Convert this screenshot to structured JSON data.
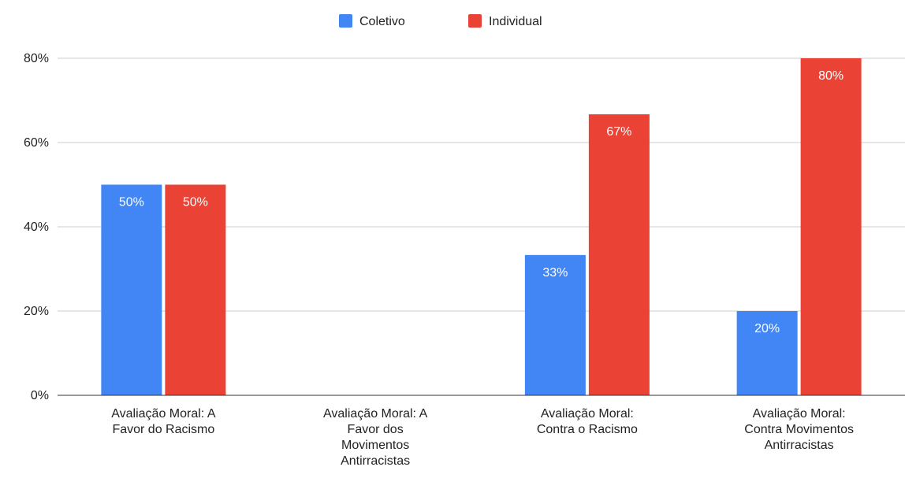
{
  "chart_data": {
    "type": "bar",
    "title": "",
    "xlabel": "",
    "ylabel": "",
    "ylim": [
      0,
      80
    ],
    "y_ticks": [
      "0%",
      "20%",
      "40%",
      "60%",
      "80%"
    ],
    "y_tick_values": [
      0,
      20,
      40,
      60,
      80
    ],
    "grid": true,
    "legend_position": "top",
    "categories": [
      [
        "Avaliação Moral: A",
        "Favor do Racismo"
      ],
      [
        "Avaliação Moral: A",
        "Favor dos",
        "Movimentos",
        "Antirracistas"
      ],
      [
        "Avaliação Moral:",
        "Contra o Racismo"
      ],
      [
        "Avaliação Moral:",
        "Contra Movimentos",
        "Antirracistas"
      ]
    ],
    "series": [
      {
        "name": "Coletivo",
        "color": "#4285f4",
        "values": [
          50,
          null,
          33.3,
          20
        ],
        "labels": [
          "50%",
          null,
          "33%",
          "20%"
        ]
      },
      {
        "name": "Individual",
        "color": "#ea4335",
        "values": [
          50,
          null,
          66.7,
          80
        ],
        "labels": [
          "50%",
          null,
          "67%",
          "80%"
        ]
      }
    ]
  }
}
